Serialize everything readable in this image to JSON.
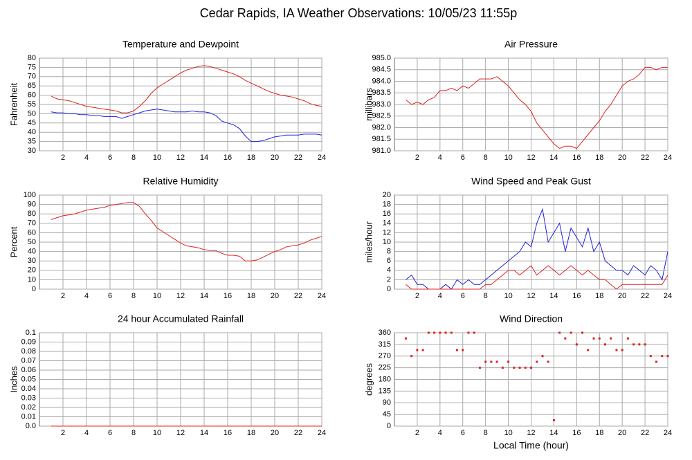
{
  "title": "Cedar Rapids, IA Weather Observations: 10/05/23 11:55p",
  "chart_data": [
    {
      "type": "line",
      "title": "Temperature and Dewpoint",
      "ylabel": "Fahrenheit",
      "x": [
        1,
        1.5,
        2,
        2.5,
        3,
        3.5,
        4,
        4.5,
        5,
        5.5,
        6,
        6.5,
        7,
        7.5,
        8,
        8.5,
        9,
        9.5,
        10,
        10.5,
        11,
        11.5,
        12,
        12.5,
        13,
        13.5,
        14,
        14.5,
        15,
        15.5,
        16,
        16.5,
        17,
        17.5,
        18,
        18.5,
        19,
        19.5,
        20,
        20.5,
        21,
        21.5,
        22,
        22.5,
        23,
        23.5,
        24
      ],
      "series": [
        {
          "color": "#e02020",
          "values": [
            59.5,
            58,
            57.5,
            57,
            56,
            55,
            54,
            53.5,
            53,
            52.5,
            52,
            51.5,
            50.5,
            50.5,
            51.5,
            54,
            57,
            61,
            64,
            66,
            68,
            70,
            72,
            73.5,
            74.5,
            75.5,
            76,
            75.5,
            74.5,
            73.5,
            72.5,
            71.5,
            70,
            68,
            66.5,
            65,
            63.5,
            62,
            61,
            60,
            59.5,
            59,
            58,
            57,
            55.5,
            54.5,
            54
          ]
        },
        {
          "color": "#2020e0",
          "values": [
            51,
            50.5,
            50.5,
            50,
            50,
            49.5,
            49.5,
            49,
            49,
            48.5,
            48.5,
            48.5,
            47.5,
            48.5,
            49.5,
            50.5,
            51.5,
            52,
            52.5,
            52,
            51.5,
            51,
            51,
            51,
            51.5,
            51,
            51,
            50.5,
            49,
            46,
            45,
            44,
            42,
            38,
            35,
            35,
            35.5,
            36.5,
            37.5,
            38,
            38.5,
            38.5,
            38.5,
            39,
            39,
            39,
            38.5
          ]
        }
      ],
      "xlim": [
        0,
        24
      ],
      "xticks": [
        2,
        4,
        6,
        8,
        10,
        12,
        14,
        16,
        18,
        20,
        22,
        24
      ],
      "ylim": [
        30,
        80
      ],
      "yticks": [
        30,
        35,
        40,
        45,
        50,
        55,
        60,
        65,
        70,
        75,
        80
      ],
      "grid": true
    },
    {
      "type": "line",
      "title": "Air Pressure",
      "ylabel": "millibars",
      "x": [
        1,
        1.5,
        2,
        2.5,
        3,
        3.5,
        4,
        4.5,
        5,
        5.5,
        6,
        6.5,
        7,
        7.5,
        8,
        8.5,
        9,
        9.5,
        10,
        10.5,
        11,
        11.5,
        12,
        12.5,
        13,
        13.5,
        14,
        14.5,
        15,
        15.5,
        16,
        16.5,
        17,
        17.5,
        18,
        18.5,
        19,
        19.5,
        20,
        20.5,
        21,
        21.5,
        22,
        22.5,
        23,
        23.5,
        24
      ],
      "series": [
        {
          "color": "#e02020",
          "values": [
            983.2,
            983.0,
            983.1,
            983.0,
            983.2,
            983.3,
            983.6,
            983.6,
            983.7,
            983.6,
            983.8,
            983.7,
            983.9,
            984.1,
            984.1,
            984.1,
            984.2,
            984.0,
            983.8,
            983.5,
            983.2,
            983.0,
            982.7,
            982.2,
            981.9,
            981.6,
            981.3,
            981.1,
            981.2,
            981.2,
            981.1,
            981.4,
            981.7,
            982.0,
            982.3,
            982.7,
            983.0,
            983.4,
            983.8,
            984.0,
            984.1,
            984.3,
            984.6,
            984.6,
            984.5,
            984.6,
            984.6
          ]
        }
      ],
      "xlim": [
        0,
        24
      ],
      "xticks": [
        2,
        4,
        6,
        8,
        10,
        12,
        14,
        16,
        18,
        20,
        22,
        24
      ],
      "ylim": [
        981,
        985
      ],
      "yticks": [
        {
          "value": 981,
          "label": "981.0"
        },
        981.5,
        {
          "value": 982,
          "label": "982.0"
        },
        982.5,
        {
          "value": 983,
          "label": "983.0"
        },
        983.5,
        {
          "value": 984,
          "label": "984.0"
        },
        984.5,
        {
          "value": 985,
          "label": "985.0"
        }
      ],
      "grid": true
    },
    {
      "type": "line",
      "title": "Relative Humidity",
      "ylabel": "Percent",
      "x": [
        1,
        1.5,
        2,
        2.5,
        3,
        3.5,
        4,
        4.5,
        5,
        5.5,
        6,
        6.5,
        7,
        7.5,
        8,
        8.5,
        9,
        9.5,
        10,
        10.5,
        11,
        11.5,
        12,
        12.5,
        13,
        13.5,
        14,
        14.5,
        15,
        15.5,
        16,
        16.5,
        17,
        17.5,
        18,
        18.5,
        19,
        19.5,
        20,
        20.5,
        21,
        21.5,
        22,
        22.5,
        23,
        23.5,
        24
      ],
      "series": [
        {
          "color": "#e02020",
          "values": [
            74,
            76,
            78,
            79,
            80,
            82,
            84,
            85,
            86,
            87,
            89,
            90,
            91,
            92,
            92,
            88,
            80,
            73,
            65,
            61,
            57,
            53,
            49,
            46,
            45,
            44,
            42,
            41,
            41,
            38,
            36,
            36,
            35,
            30,
            30,
            31,
            34,
            37,
            40,
            42,
            45,
            46,
            47,
            49,
            52,
            54,
            56
          ]
        }
      ],
      "xlim": [
        0,
        24
      ],
      "xticks": [
        2,
        4,
        6,
        8,
        10,
        12,
        14,
        16,
        18,
        20,
        22,
        24
      ],
      "ylim": [
        0,
        100
      ],
      "yticks": [
        0,
        10,
        20,
        30,
        40,
        50,
        60,
        70,
        80,
        90,
        100
      ],
      "grid": true
    },
    {
      "type": "line",
      "title": "Wind Speed and Peak Gust",
      "ylabel": "miles/hour",
      "x": [
        1,
        1.5,
        2,
        2.5,
        3,
        3.5,
        4,
        4.5,
        5,
        5.5,
        6,
        6.5,
        7,
        7.5,
        8,
        8.5,
        9,
        9.5,
        10,
        10.5,
        11,
        11.5,
        12,
        12.5,
        13,
        13.5,
        14,
        14.5,
        15,
        15.5,
        16,
        16.5,
        17,
        17.5,
        18,
        18.5,
        19,
        19.5,
        20,
        20.5,
        21,
        21.5,
        22,
        22.5,
        23,
        23.5,
        24
      ],
      "series": [
        {
          "color": "#2020e0",
          "values": [
            2,
            3,
            1,
            1,
            0,
            0,
            0,
            1,
            0,
            2,
            1,
            2,
            1,
            1,
            2,
            3,
            4,
            5,
            6,
            7,
            8,
            10,
            9,
            14,
            17,
            10,
            12,
            14,
            8,
            13,
            11,
            9,
            13,
            8,
            10,
            6,
            5,
            4,
            4,
            3,
            5,
            4,
            3,
            5,
            4,
            2,
            8
          ]
        },
        {
          "color": "#e02020",
          "values": [
            1,
            0,
            0,
            0,
            0,
            0,
            0,
            0,
            0,
            0,
            0,
            0,
            0,
            0,
            1,
            1,
            2,
            3,
            4,
            4,
            3,
            4,
            5,
            3,
            4,
            5,
            4,
            3,
            4,
            5,
            4,
            3,
            4,
            3,
            2,
            2,
            1,
            0,
            1,
            1,
            1,
            1,
            1,
            1,
            1,
            1,
            3
          ]
        }
      ],
      "xlim": [
        0,
        24
      ],
      "xticks": [
        2,
        4,
        6,
        8,
        10,
        12,
        14,
        16,
        18,
        20,
        22,
        24
      ],
      "ylim": [
        0,
        20
      ],
      "yticks": [
        0,
        2,
        4,
        6,
        8,
        10,
        12,
        14,
        16,
        18,
        20
      ],
      "grid": true
    },
    {
      "type": "line",
      "title": "24 hour Accumulated Rainfall",
      "ylabel": "Inches",
      "x": [
        1,
        1.5,
        2,
        2.5,
        3,
        3.5,
        4,
        4.5,
        5,
        5.5,
        6,
        6.5,
        7,
        7.5,
        8,
        8.5,
        9,
        9.5,
        10,
        10.5,
        11,
        11.5,
        12,
        12.5,
        13,
        13.5,
        14,
        14.5,
        15,
        15.5,
        16,
        16.5,
        17,
        17.5,
        18,
        18.5,
        19,
        19.5,
        20,
        20.5,
        21,
        21.5,
        22,
        22.5,
        23,
        23.5,
        24
      ],
      "series": [
        {
          "color": "#e02020",
          "values": [
            0,
            0,
            0,
            0,
            0,
            0,
            0,
            0,
            0,
            0,
            0,
            0,
            0,
            0,
            0,
            0,
            0,
            0,
            0,
            0,
            0,
            0,
            0,
            0,
            0,
            0,
            0,
            0,
            0,
            0,
            0,
            0,
            0,
            0,
            0,
            0,
            0,
            0,
            0,
            0,
            0,
            0,
            0,
            0,
            0,
            0,
            0
          ]
        }
      ],
      "xlim": [
        0,
        24
      ],
      "xticks": [
        2,
        4,
        6,
        8,
        10,
        12,
        14,
        16,
        18,
        20,
        22,
        24
      ],
      "ylim": [
        0,
        0.1
      ],
      "yticks": [
        {
          "value": 0,
          "label": "0.0"
        },
        0.01,
        0.02,
        0.03,
        0.04,
        0.05,
        0.06,
        0.07,
        0.08,
        0.09,
        0.1
      ],
      "grid": true
    },
    {
      "type": "scatter",
      "title": "Wind Direction",
      "ylabel": "degrees",
      "xlabel": "Local Time (hour)",
      "x": [
        1,
        1.5,
        2,
        2.5,
        3,
        3.5,
        4,
        4.5,
        5,
        5.5,
        6,
        6.5,
        7,
        7.5,
        8,
        8.5,
        9,
        9.5,
        10,
        10.5,
        11,
        11.5,
        12,
        12.5,
        13,
        13.5,
        14,
        14.5,
        15,
        15.5,
        16,
        16.5,
        17,
        17.5,
        18,
        18.5,
        19,
        19.5,
        20,
        20.5,
        21,
        21.5,
        22,
        22.5,
        23,
        23.5,
        24
      ],
      "series": [
        {
          "color": "#e02020",
          "values": [
            338,
            270,
            293,
            293,
            360,
            360,
            360,
            360,
            360,
            293,
            293,
            360,
            360,
            225,
            248,
            248,
            248,
            225,
            248,
            225,
            225,
            225,
            225,
            248,
            270,
            248,
            22.5,
            360,
            338,
            360,
            315,
            360,
            293,
            338,
            338,
            315,
            338,
            293,
            293,
            338,
            315,
            315,
            315,
            270,
            248,
            270,
            270
          ]
        }
      ],
      "xlim": [
        0,
        24
      ],
      "xticks": [
        2,
        4,
        6,
        8,
        10,
        12,
        14,
        16,
        18,
        20,
        22,
        24
      ],
      "ylim": [
        0,
        360
      ],
      "yticks": [
        0,
        45,
        90,
        135,
        180,
        225,
        270,
        315,
        360
      ],
      "grid": true
    }
  ]
}
